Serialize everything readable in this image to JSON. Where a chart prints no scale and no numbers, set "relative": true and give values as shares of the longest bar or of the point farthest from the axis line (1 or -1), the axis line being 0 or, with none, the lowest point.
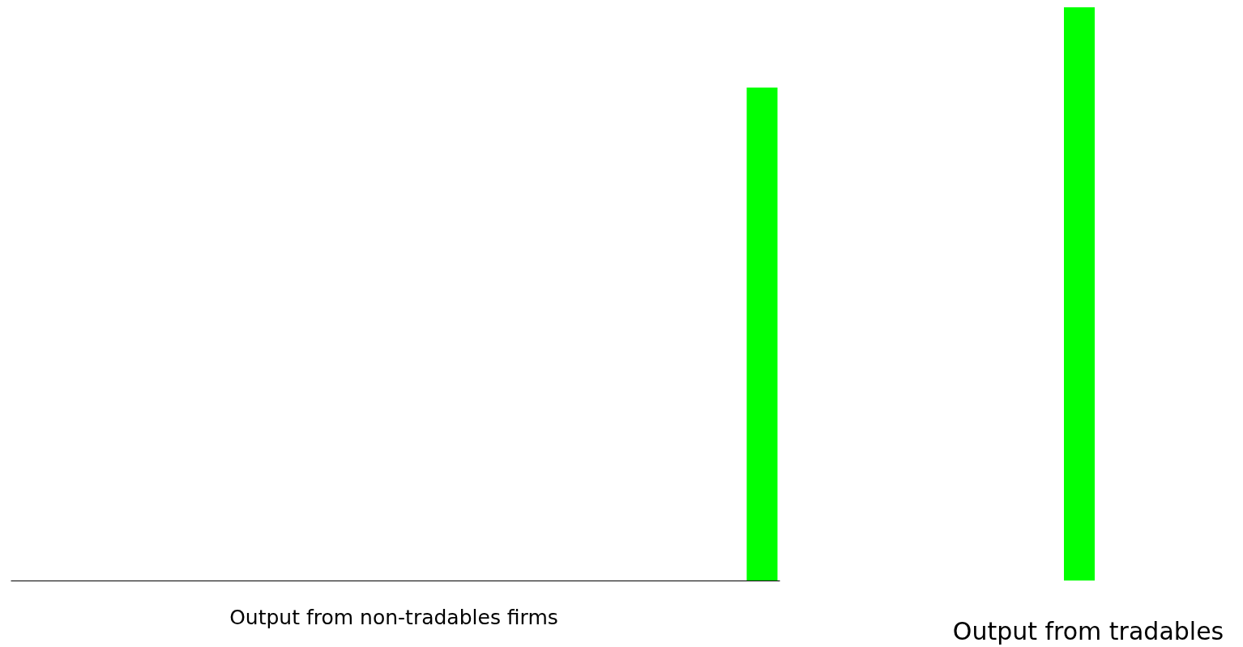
{
  "chart_data": {
    "type": "bar",
    "relative": true,
    "categories": [
      null,
      null
    ],
    "values": [
      0.86,
      1
    ],
    "color": "#00ff00",
    "annotations": [
      "Output from non-tradables firms",
      "Output from tradables"
    ]
  }
}
